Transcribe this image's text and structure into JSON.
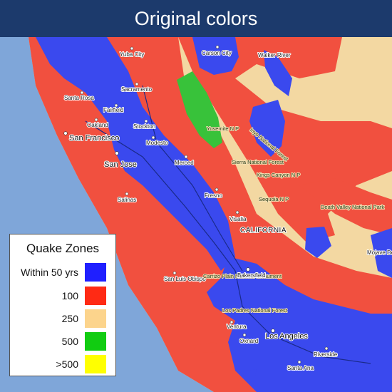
{
  "header": {
    "title": "Original colors"
  },
  "legend": {
    "title": "Quake Zones",
    "items": [
      {
        "label": "Within 50 yrs",
        "color": "#1f1fff"
      },
      {
        "label": "100",
        "color": "#ff2a14"
      },
      {
        "label": "250",
        "color": "#fcd48c"
      },
      {
        "label": "500",
        "color": "#11cc11"
      },
      {
        "label": ">500",
        "color": "#ffff00"
      }
    ]
  },
  "labels": {
    "yuba_city": "Yuba City",
    "carson_city": "Carson City",
    "walker_river": "Walker River",
    "santa_rosa": "Santa Rosa",
    "sacramento": "Sacramento",
    "fairfield": "Fairfield",
    "oakland": "Oakland",
    "san_francisco": "San Francisco",
    "stockton": "Stockton",
    "modesto": "Modesto",
    "yosemite": "Yosemite N P",
    "inyo": "Inyo National Forest",
    "san_jose": "San Jose",
    "merced": "Merced",
    "sierra": "Sierra National Forest",
    "kings_canyon": "Kings Canyon N P",
    "fresno": "Fresno",
    "sequoia": "Sequoia N P",
    "salinas": "Salinas",
    "death_valley": "Death Valley National Park",
    "visalia": "Visalia",
    "california": "CALIFORNIA",
    "mojave": "Mojave De",
    "san_luis_obispo": "San Luis Obispo",
    "carrizo": "Carrizo Plain National Monument",
    "bakersfield": "Bakersfield",
    "los_padres": "Los Padres National Forest",
    "ventura": "Ventura",
    "oxnard": "Oxnard",
    "los_angeles": "Los Angeles",
    "riverside": "Riverside",
    "santa_ana": "Santa Ana"
  }
}
